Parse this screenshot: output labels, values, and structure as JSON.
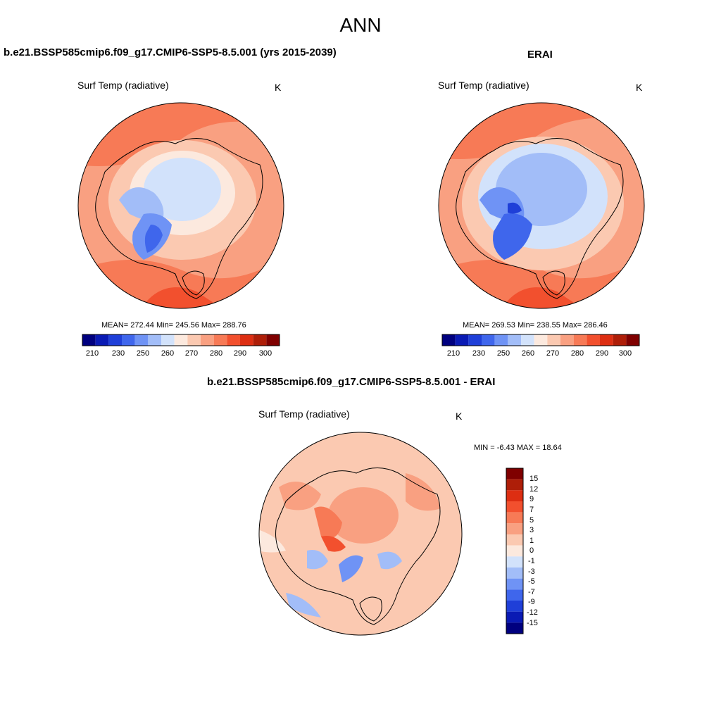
{
  "figure": {
    "title": "ANN"
  },
  "panels": [
    {
      "id": "model",
      "title": "b.e21.BSSP585cmip6.f09_g17.CMIP6-SSP5-8.5.001 (yrs 2015-2039)",
      "variable": "Surf Temp (radiative)",
      "units": "K",
      "stats": "MEAN= 272.44  Min= 245.56  Max= 288.76"
    },
    {
      "id": "obs",
      "title": "ERAI",
      "variable": "Surf Temp (radiative)",
      "units": "K",
      "stats": "MEAN= 269.53  Min= 238.55  Max= 286.46"
    },
    {
      "id": "diff",
      "title": "b.e21.BSSP585cmip6.f09_g17.CMIP6-SSP5-8.5.001 - ERAI",
      "variable": "Surf Temp (radiative)",
      "units": "K",
      "stats": "MIN =  -6.43 MAX =  18.64"
    }
  ],
  "colorbars": {
    "abs": {
      "tick_labels": [
        "210",
        "230",
        "250",
        "260",
        "270",
        "280",
        "290",
        "300"
      ],
      "colors": [
        "#00007f",
        "#0a1ab4",
        "#1f3fd8",
        "#3f66ec",
        "#6f93f5",
        "#a2bdf8",
        "#d2e2fb",
        "#fce9de",
        "#fbc9b1",
        "#f9a081",
        "#f77a56",
        "#f2502e",
        "#dd2e12",
        "#ae1e08",
        "#7f0000"
      ]
    },
    "diff": {
      "labels_top_to_bottom": [
        "15",
        "12",
        "9",
        "7",
        "5",
        "3",
        "1",
        "0",
        "-1",
        "-3",
        "-5",
        "-7",
        "-9",
        "-12",
        "-15"
      ],
      "colors_top_to_bottom": [
        "#7f0000",
        "#ae1e08",
        "#dd2e12",
        "#f2502e",
        "#f77a56",
        "#f9a081",
        "#fbc9b1",
        "#fce9de",
        "#d2e2fb",
        "#a2bdf8",
        "#6f93f5",
        "#3f66ec",
        "#1f3fd8",
        "#0a1ab4",
        "#00007f"
      ]
    }
  }
}
